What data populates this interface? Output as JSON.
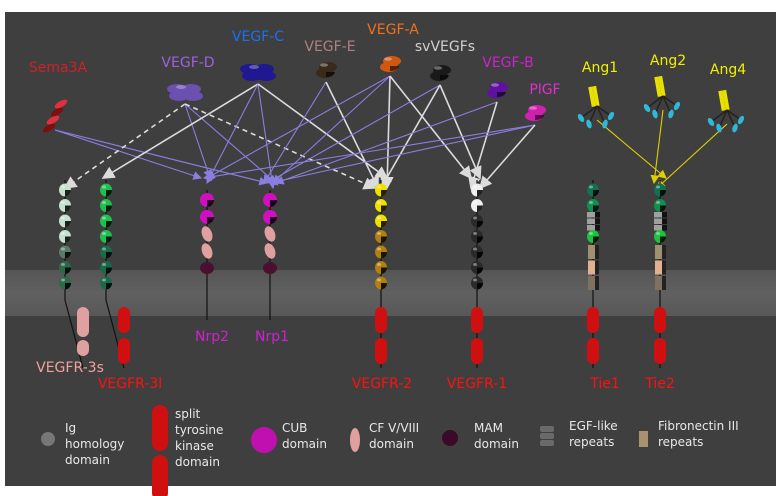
{
  "colors": {
    "background": "#3f3f3f",
    "membrane": "#5b5b5b",
    "arrow_vegf": "#8a7fe0",
    "arrow_white": "#dcdcdc",
    "arrow_ang": "#e0d000"
  },
  "ligands": [
    {
      "id": "sema3a",
      "label": "Sema3A",
      "color": "#d0202a",
      "shape": "helix",
      "body": "#7a1010"
    },
    {
      "id": "vegfd",
      "label": "VEGF-D",
      "color": "#a060e0",
      "shape": "dimer4",
      "body": "#6a50b0"
    },
    {
      "id": "vegfc",
      "label": "VEGF-C",
      "color": "#1a70f0",
      "shape": "dimer4",
      "body": "#201890"
    },
    {
      "id": "vegfe",
      "label": "VEGF-E",
      "color": "#b08080",
      "shape": "dimer",
      "body": "#3a2a1a"
    },
    {
      "id": "vegfa",
      "label": "VEGF-A",
      "color": "#f07020",
      "shape": "dimer",
      "body": "#d05810"
    },
    {
      "id": "svvegfs",
      "label": "svVEGFs",
      "color": "#d0d0d0",
      "shape": "dimer",
      "body": "#1a1a1a"
    },
    {
      "id": "vegfb",
      "label": "VEGF-B",
      "color": "#d020d0",
      "shape": "dimer",
      "body": "#6010a0"
    },
    {
      "id": "plgf",
      "label": "PlGF",
      "color": "#e030d0",
      "shape": "dimer",
      "body": "#d020b0"
    },
    {
      "id": "ang1",
      "label": "Ang1",
      "color": "#f0f000",
      "shape": "ang",
      "body": "#e8e000"
    },
    {
      "id": "ang2",
      "label": "Ang2",
      "color": "#f0f000",
      "shape": "ang",
      "body": "#e8e000"
    },
    {
      "id": "ang4",
      "label": "Ang4",
      "color": "#f0f000",
      "shape": "ang",
      "body": "#e8e000"
    }
  ],
  "receptors": [
    {
      "id": "vegfr3s",
      "label": "VEGFR-3s",
      "color": "#f0a0a0",
      "domains": [
        "ig:#c8e0d0",
        "ig:#c8e0d0",
        "ig:#c8e0d0",
        "ig:#c8e0d0",
        "ig:#5a7a6a",
        "ig:#2a6a4a",
        "ig:#2a6a4a"
      ],
      "kinase": "#e0a0a0",
      "kinase_style": "short"
    },
    {
      "id": "vegfr3l",
      "label": "VEGFR-3l",
      "color": "#ff1010",
      "domains": [
        "ig:#20c050",
        "ig:#20c050",
        "ig:#20c050",
        "ig:#20c050",
        "ig:#1a6a4a",
        "ig:#1a6a4a",
        "ig:#1a6a4a"
      ],
      "kinase": "#d01010",
      "kinase_style": "long"
    },
    {
      "id": "nrp2",
      "label": "Nrp2",
      "color": "#d020d0",
      "domains": [
        "cub:#d010c0",
        "cub:#d010c0",
        "cf:#e0a0a0",
        "cf:#e0a0a0",
        "mam:#4a1030"
      ],
      "kinase": null
    },
    {
      "id": "nrp1",
      "label": "Nrp1",
      "color": "#d020d0",
      "domains": [
        "cub:#d010c0",
        "cub:#d010c0",
        "cf:#e0a0a0",
        "cf:#e0a0a0",
        "mam:#4a1030"
      ],
      "kinase": null
    },
    {
      "id": "vegfr2",
      "label": "VEGFR-2",
      "color": "#ff1010",
      "domains": [
        "ig:#f0e000",
        "ig:#f0e000",
        "ig:#f0e000",
        "ig:#b08010",
        "ig:#b08010",
        "ig:#b08010",
        "ig:#b08010"
      ],
      "kinase": "#d01010",
      "kinase_style": "long"
    },
    {
      "id": "vegfr1",
      "label": "VEGFR-1",
      "color": "#ff1010",
      "domains": [
        "ig:#f0f0f0",
        "ig:#f0f0f0",
        "ig:#2a2a2a",
        "ig:#2a2a2a",
        "ig:#2a2a2a",
        "ig:#2a2a2a",
        "ig:#2a2a2a"
      ],
      "kinase": "#d01010",
      "kinase_style": "long"
    },
    {
      "id": "tie1",
      "label": "Tie1",
      "color": "#ff1010",
      "domains": [
        "ig:#107050",
        "ig:#109050",
        "egf:#a0a0a0",
        "ig:#20c040",
        "fn:#a09070",
        "fn:#e0b090",
        "fn:#807060"
      ],
      "kinase": "#d01010",
      "kinase_style": "long"
    },
    {
      "id": "tie2",
      "label": "Tie2",
      "color": "#ff1010",
      "domains": [
        "ig:#107050",
        "ig:#109050",
        "egf:#a0a0a0",
        "ig:#20c040",
        "fn:#a09070",
        "fn:#e0b090",
        "fn:#807060"
      ],
      "kinase": "#d01010",
      "kinase_style": "long"
    }
  ],
  "arrows": [
    {
      "from": "sema3a",
      "to": "nrp2",
      "style": "solid",
      "color": "vegf"
    },
    {
      "from": "sema3a",
      "to": "nrp1",
      "style": "solid",
      "color": "vegf"
    },
    {
      "from": "vegfd",
      "to": "vegfr3s",
      "style": "dashed",
      "color": "white"
    },
    {
      "from": "vegfd",
      "to": "nrp2",
      "style": "solid",
      "color": "vegf"
    },
    {
      "from": "vegfd",
      "to": "nrp1",
      "style": "solid",
      "color": "vegf"
    },
    {
      "from": "vegfd",
      "to": "vegfr2",
      "style": "dashed",
      "color": "white"
    },
    {
      "from": "vegfc",
      "to": "vegfr3l",
      "style": "solid",
      "color": "white"
    },
    {
      "from": "vegfc",
      "to": "nrp2",
      "style": "solid",
      "color": "vegf"
    },
    {
      "from": "vegfc",
      "to": "nrp1",
      "style": "solid",
      "color": "vegf"
    },
    {
      "from": "vegfc",
      "to": "vegfr2",
      "style": "solid",
      "color": "white"
    },
    {
      "from": "vegfe",
      "to": "nrp1",
      "style": "solid",
      "color": "vegf"
    },
    {
      "from": "vegfe",
      "to": "vegfr2",
      "style": "solid",
      "color": "white"
    },
    {
      "from": "vegfa",
      "to": "nrp2",
      "style": "solid",
      "color": "vegf"
    },
    {
      "from": "vegfa",
      "to": "nrp1",
      "style": "solid",
      "color": "vegf"
    },
    {
      "from": "vegfa",
      "to": "vegfr2",
      "style": "solid",
      "color": "white"
    },
    {
      "from": "vegfa",
      "to": "vegfr1",
      "style": "solid",
      "color": "white"
    },
    {
      "from": "svvegfs",
      "to": "nrp1",
      "style": "solid",
      "color": "vegf"
    },
    {
      "from": "svvegfs",
      "to": "vegfr2",
      "style": "solid",
      "color": "white"
    },
    {
      "from": "svvegfs",
      "to": "vegfr1",
      "style": "solid",
      "color": "white"
    },
    {
      "from": "vegfb",
      "to": "nrp1",
      "style": "solid",
      "color": "vegf"
    },
    {
      "from": "vegfb",
      "to": "vegfr1",
      "style": "solid",
      "color": "white"
    },
    {
      "from": "plgf",
      "to": "nrp2",
      "style": "solid",
      "color": "vegf"
    },
    {
      "from": "plgf",
      "to": "nrp1",
      "style": "solid",
      "color": "vegf"
    },
    {
      "from": "plgf",
      "to": "vegfr1",
      "style": "solid",
      "color": "white"
    },
    {
      "from": "ang1",
      "to": "tie2",
      "style": "solid",
      "color": "ang"
    },
    {
      "from": "ang2",
      "to": "tie2",
      "style": "solid",
      "color": "ang"
    },
    {
      "from": "ang4",
      "to": "tie2",
      "style": "solid",
      "color": "ang"
    }
  ],
  "legend": [
    {
      "id": "ig",
      "lines": [
        "Ig",
        "homology",
        "domain"
      ],
      "icon": "ig-domain"
    },
    {
      "id": "kinase",
      "lines": [
        "split",
        "tyrosine",
        "kinase",
        "domain"
      ],
      "icon": "split-kinase"
    },
    {
      "id": "cub",
      "lines": [
        "CUB",
        "domain"
      ],
      "icon": "cub-domain"
    },
    {
      "id": "cf",
      "lines": [
        "CF V/VIII",
        "domain"
      ],
      "icon": "cf-domain"
    },
    {
      "id": "mam",
      "lines": [
        "MAM",
        "domain"
      ],
      "icon": "mam-domain"
    },
    {
      "id": "egf",
      "lines": [
        "EGF-like",
        "repeats"
      ],
      "icon": "egf-repeats"
    },
    {
      "id": "fn",
      "lines": [
        "Fibronectin III",
        "repeats"
      ],
      "icon": "fibronectin-repeats"
    }
  ]
}
